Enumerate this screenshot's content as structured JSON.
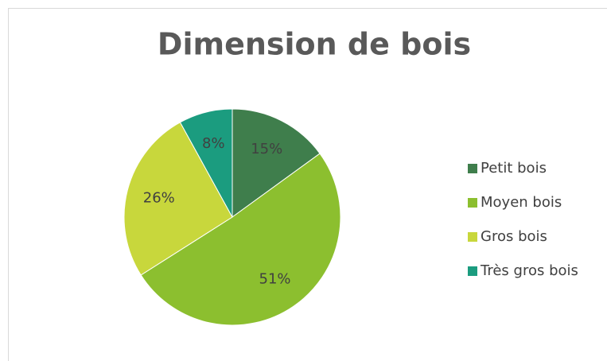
{
  "chart_data": {
    "type": "pie",
    "title": "Dimension de bois",
    "categories": [
      "Petit bois",
      "Moyen bois",
      "Gros bois",
      "Très gros bois"
    ],
    "values": [
      15,
      51,
      26,
      8
    ],
    "value_labels": [
      "15%",
      "51%",
      "26%",
      "8%"
    ],
    "colors": [
      "#3f7e4c",
      "#8cbf2f",
      "#c8d73c",
      "#1b9c7f"
    ],
    "legend": "right"
  }
}
